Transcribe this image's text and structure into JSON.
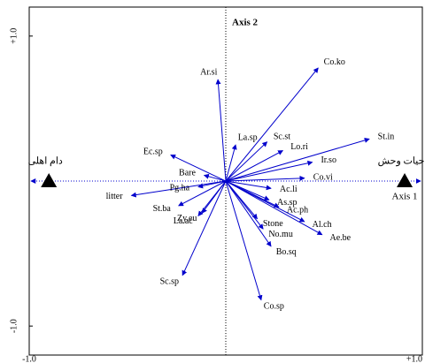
{
  "chart_data": {
    "type": "biplot",
    "axis_x_label": "Axis 1",
    "axis_y_label": "Axis 2",
    "xlim": [
      -1.0,
      1.0
    ],
    "ylim": [
      -1.2,
      1.2
    ],
    "xticks": [
      {
        "value": -1.0,
        "label": "-1.0"
      },
      {
        "value": 1.0,
        "label": "+1.0"
      }
    ],
    "yticks": [
      {
        "value": -1.0,
        "label": "-1.0"
      },
      {
        "value": 1.0,
        "label": "+1.0"
      }
    ],
    "arrow_color": "#0000cc",
    "species": [
      {
        "name": "Co.ko",
        "x": 0.47,
        "y": 0.78
      },
      {
        "name": "Ar.si",
        "x": -0.04,
        "y": 0.7
      },
      {
        "name": "St.in",
        "x": 0.73,
        "y": 0.29
      },
      {
        "name": "Sc.st",
        "x": 0.21,
        "y": 0.27
      },
      {
        "name": "Lo.ri",
        "x": 0.29,
        "y": 0.21
      },
      {
        "name": "La.sp",
        "x": 0.05,
        "y": 0.25
      },
      {
        "name": "Ir.so",
        "x": 0.44,
        "y": 0.13
      },
      {
        "name": "Co.vi",
        "x": 0.4,
        "y": 0.02
      },
      {
        "name": "Ec.sp",
        "x": -0.28,
        "y": 0.18
      },
      {
        "name": "Bare",
        "x": -0.11,
        "y": 0.04
      },
      {
        "name": "litter",
        "x": -0.48,
        "y": -0.1
      },
      {
        "name": "Pg.ha",
        "x": -0.14,
        "y": -0.04
      },
      {
        "name": "St.ba",
        "x": -0.24,
        "y": -0.17
      },
      {
        "name": "Zy.eu",
        "x": -0.12,
        "y": -0.22
      },
      {
        "name": "La.ac",
        "x": -0.14,
        "y": -0.24
      },
      {
        "name": "Sc.sp",
        "x": -0.22,
        "y": -0.65
      },
      {
        "name": "Co.sp",
        "x": 0.18,
        "y": -0.82
      },
      {
        "name": "Bo.sq",
        "x": 0.23,
        "y": -0.45
      },
      {
        "name": "No.mu",
        "x": 0.19,
        "y": -0.33
      },
      {
        "name": "Stone",
        "x": 0.16,
        "y": -0.26
      },
      {
        "name": "Ac.li",
        "x": 0.23,
        "y": -0.05
      },
      {
        "name": "As.sp",
        "x": 0.22,
        "y": -0.13
      },
      {
        "name": "Ac.ph",
        "x": 0.27,
        "y": -0.18
      },
      {
        "name": "Al.ch",
        "x": 0.4,
        "y": -0.28
      },
      {
        "name": "Ae.be",
        "x": 0.49,
        "y": -0.37
      }
    ],
    "environment": [
      {
        "name": "دام اهلی",
        "x": -0.9,
        "y": 0
      },
      {
        "name": "حیات وحش",
        "x": 0.91,
        "y": 0
      }
    ]
  }
}
